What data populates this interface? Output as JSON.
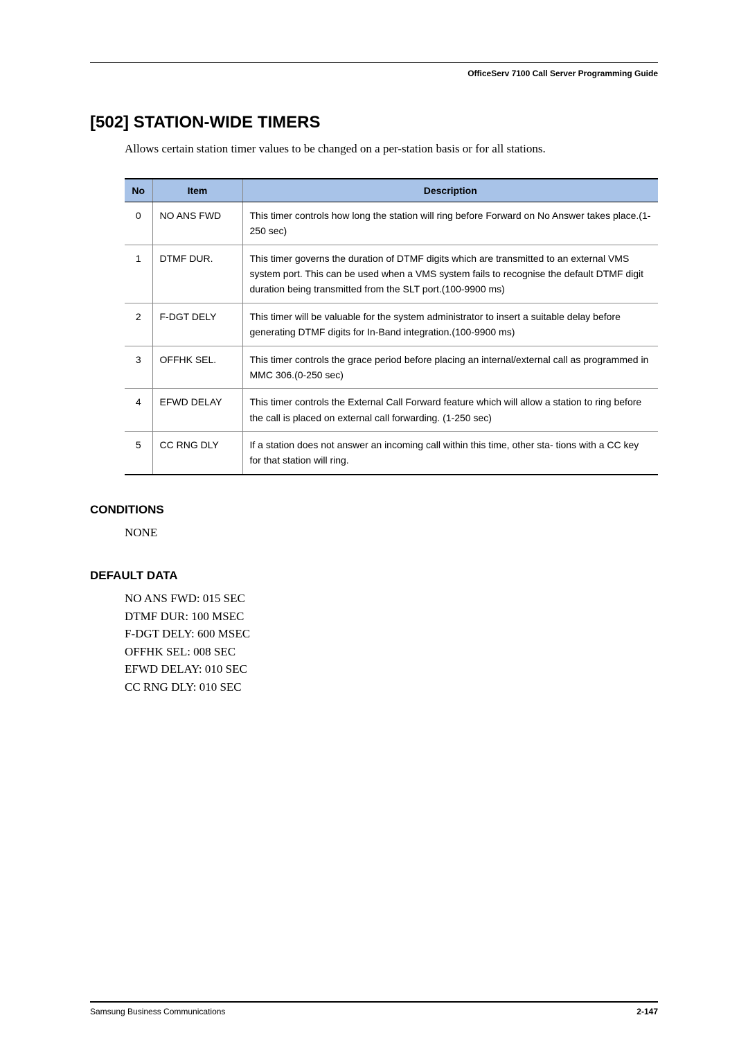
{
  "running_head": "OfficeServ 7100 Call Server Programming Guide",
  "section_title": "[502] STATION-WIDE TIMERS",
  "intro": "Allows certain station timer values to be changed on a per-station basis or for all stations.",
  "table": {
    "headers": {
      "no": "No",
      "item": "Item",
      "desc": "Description"
    },
    "rows": [
      {
        "no": "0",
        "item": "NO ANS FWD",
        "desc": "This timer controls how long the station will ring before Forward on No Answer takes place.(1-250 sec)"
      },
      {
        "no": "1",
        "item": "DTMF DUR.",
        "desc": "This timer governs the duration of DTMF digits which are transmitted to an external VMS system port. This can be used when a VMS system fails to recognise the default DTMF digit duration being transmitted from the SLT port.(100-9900 ms)"
      },
      {
        "no": "2",
        "item": "F-DGT DELY",
        "desc": "This timer will be valuable for the system administrator to insert a suitable delay before generating DTMF digits for In-Band integration.(100-9900 ms)"
      },
      {
        "no": "3",
        "item": "OFFHK SEL.",
        "desc": "This timer controls the grace period before placing an internal/external call as programmed in MMC 306.(0-250 sec)"
      },
      {
        "no": "4",
        "item": "EFWD DELAY",
        "desc": "This timer controls the External Call Forward feature which will allow a station to ring before the call is placed on external call forwarding. (1-250 sec)"
      },
      {
        "no": "5",
        "item": "CC RNG DLY",
        "desc": "If a station does not answer an incoming call within this time, other sta- tions with a CC key for that station will ring."
      }
    ]
  },
  "conditions_head": "CONDITIONS",
  "conditions_body": "NONE",
  "default_head": "DEFAULT DATA",
  "defaults": [
    "NO ANS FWD: 015 SEC",
    "DTMF DUR: 100 MSEC",
    "F-DGT DELY: 600 MSEC",
    "OFFHK SEL: 008 SEC",
    "EFWD DELAY: 010 SEC",
    "CC RNG DLY: 010 SEC"
  ],
  "footer_left": "Samsung Business Communications",
  "footer_right": "2-147"
}
